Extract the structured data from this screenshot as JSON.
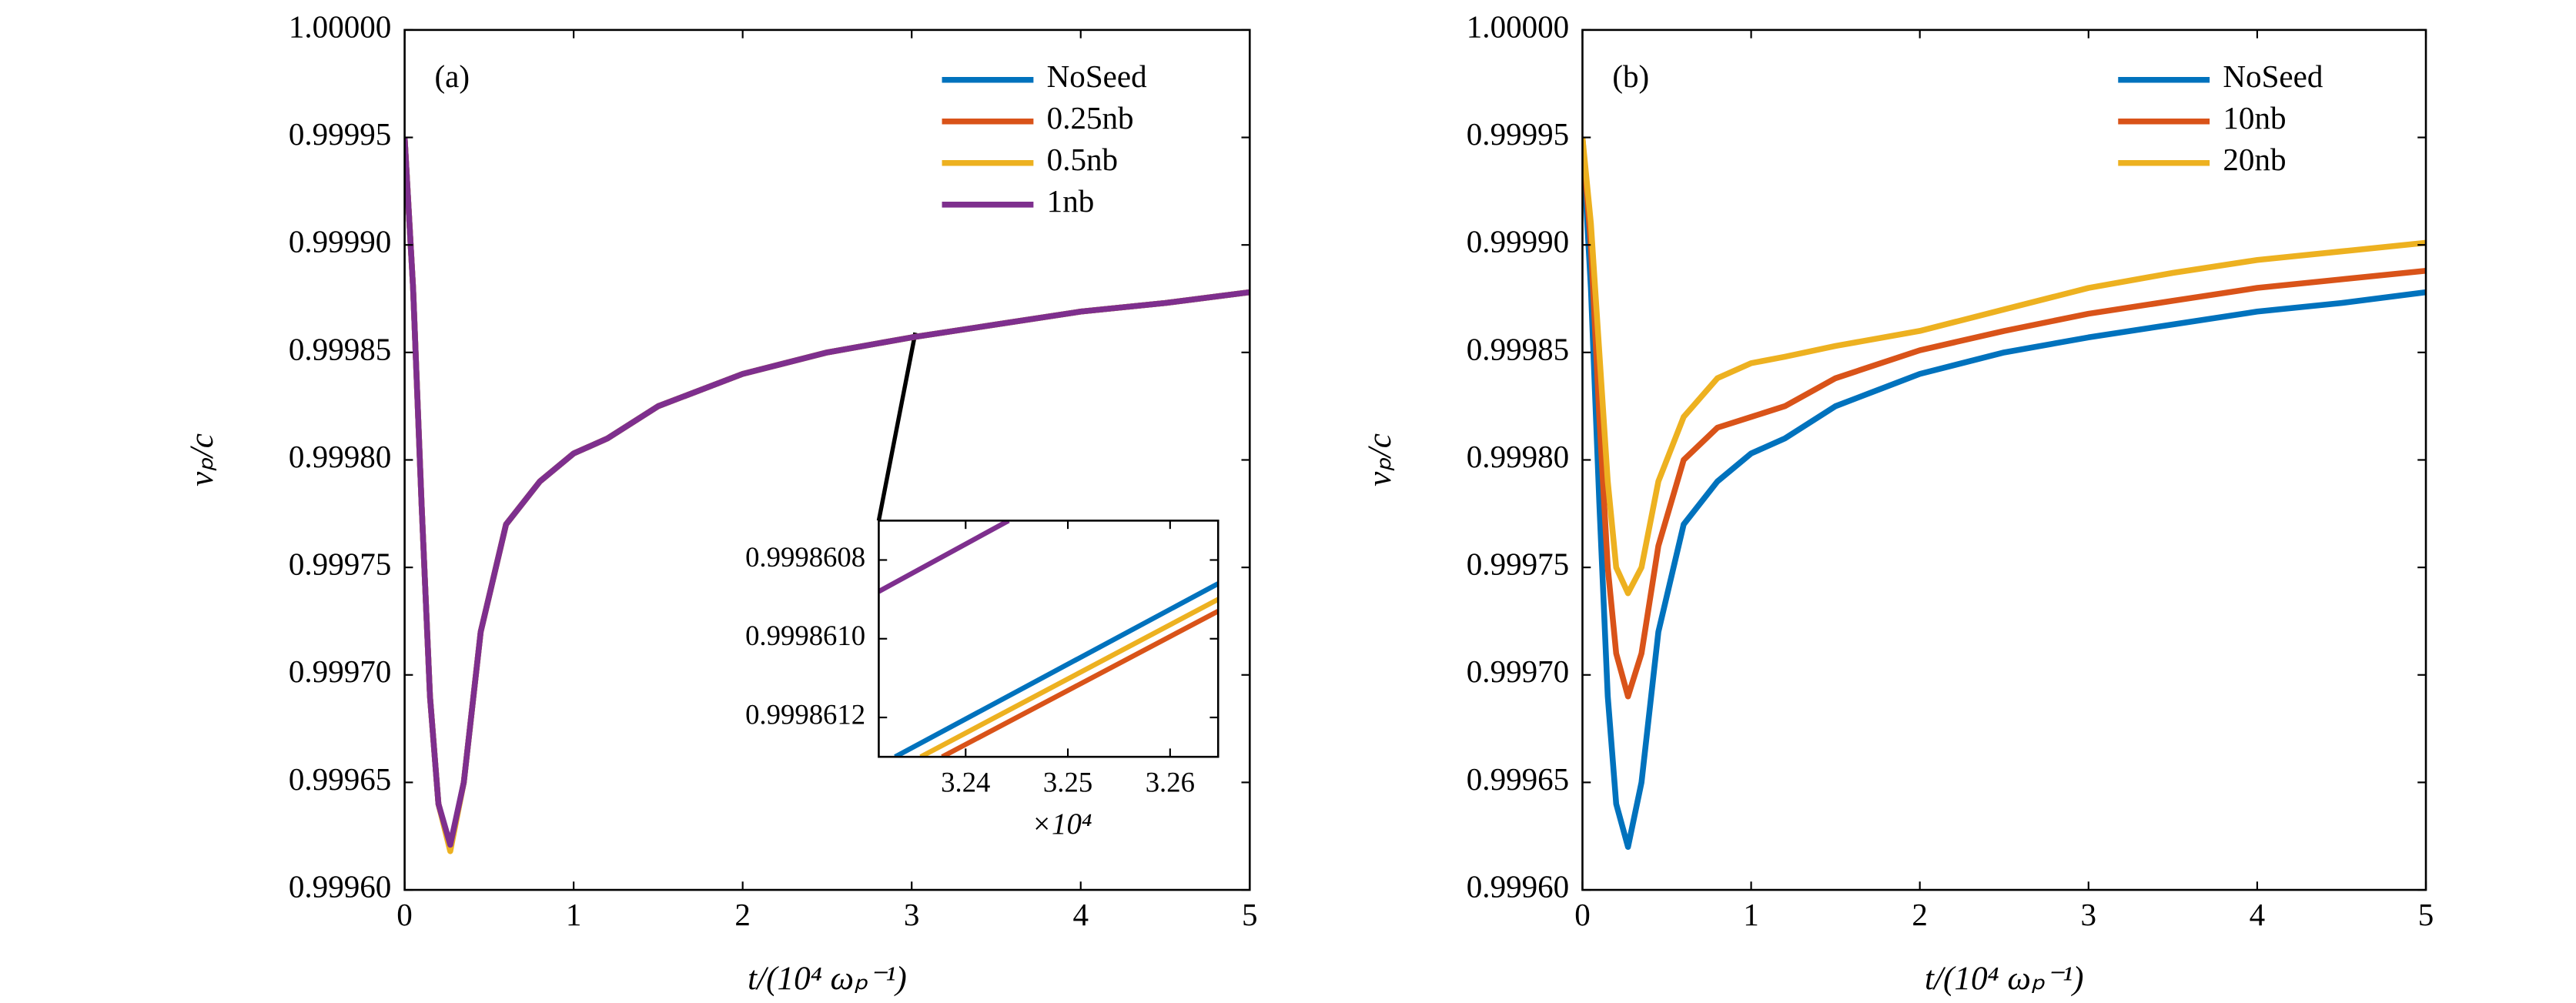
{
  "chart_data": [
    {
      "type": "line",
      "annotation": "(a)",
      "x_label": "t/(10⁴ ωₚ⁻¹)",
      "y_label": "vₚ/c",
      "x": [
        0,
        0.05,
        0.1,
        0.15,
        0.2,
        0.27,
        0.35,
        0.45,
        0.6,
        0.8,
        1.0,
        1.2,
        1.5,
        2,
        2.5,
        3,
        3.5,
        4,
        4.5,
        5
      ],
      "series": [
        {
          "name": "NoSeed",
          "color": "#0072bd",
          "values": [
            0.99995,
            0.99988,
            0.99978,
            0.99969,
            0.99964,
            0.99962,
            0.99965,
            0.99972,
            0.99977,
            0.99979,
            0.999803,
            0.99981,
            0.999825,
            0.99984,
            0.99985,
            0.999857,
            0.999863,
            0.999869,
            0.999873,
            0.999878
          ]
        },
        {
          "name": "0.25nb",
          "color": "#d95319",
          "values": [
            0.99995,
            0.99988,
            0.99978,
            0.99969,
            0.99964,
            0.999619,
            0.99965,
            0.99972,
            0.99977,
            0.99979,
            0.999803,
            0.99981,
            0.999825,
            0.99984,
            0.99985,
            0.999857,
            0.999863,
            0.999869,
            0.999873,
            0.999878
          ]
        },
        {
          "name": "0.5nb",
          "color": "#edb120",
          "values": [
            0.99995,
            0.99988,
            0.99978,
            0.99969,
            0.99964,
            0.999618,
            0.99965,
            0.99972,
            0.99977,
            0.99979,
            0.999803,
            0.99981,
            0.999825,
            0.99984,
            0.99985,
            0.999857,
            0.999863,
            0.999869,
            0.999873,
            0.999878
          ]
        },
        {
          "name": "1nb",
          "color": "#7e2f8e",
          "values": [
            0.99995,
            0.99988,
            0.99978,
            0.99969,
            0.99964,
            0.999621,
            0.99965,
            0.99972,
            0.99977,
            0.99979,
            0.999803,
            0.99981,
            0.999825,
            0.99984,
            0.99985,
            0.999857,
            0.999863,
            0.999869,
            0.999873,
            0.999878
          ]
        }
      ],
      "xlim": [
        0,
        5
      ],
      "xticks": [
        0,
        1,
        2,
        3,
        4,
        5
      ],
      "ylim": [
        0.9996,
        1
      ],
      "yticks": [
        {
          "value": 0.9996,
          "label": "0.99960"
        },
        0.99965,
        {
          "value": 0.9997,
          "label": "0.99970"
        },
        0.99975,
        {
          "value": 0.9998,
          "label": "0.99980"
        },
        0.99985,
        {
          "value": 0.9999,
          "label": "0.99990"
        },
        0.99995,
        {
          "value": 1,
          "label": "1.00000"
        }
      ],
      "legend": "upper right"
    },
    {
      "type": "line",
      "x_label": "×10⁴",
      "series": [
        {
          "name": "NoSeed",
          "color": "#0072bd",
          "x": [
            3.2331,
            3.2647
          ],
          "values": [
            0.9998613,
            0.99986086
          ]
        },
        {
          "name": "0.25nb",
          "color": "#d95319",
          "x": [
            3.2377,
            3.2647
          ],
          "values": [
            0.9998613,
            0.99986093
          ]
        },
        {
          "name": "0.5nb",
          "color": "#edb120",
          "x": [
            3.2356,
            3.2647
          ],
          "values": [
            0.9998613,
            0.9998609
          ]
        },
        {
          "name": "1nb",
          "color": "#7e2f8e",
          "x": [
            3.2315,
            3.2442
          ],
          "values": [
            0.99986088,
            0.9998607
          ]
        }
      ],
      "xlim": [
        3.2315,
        3.2647
      ],
      "xticks": [
        3.24,
        3.25,
        3.26
      ],
      "ylim": [
        0.9998613,
        0.9998607
      ],
      "yticks": [
        {
          "value": 0.9998608,
          "label": "0.9998608"
        },
        {
          "value": 0.999861,
          "label": "0.9998610"
        },
        {
          "value": 0.9998612,
          "label": "0.9998612"
        }
      ]
    },
    {
      "type": "line",
      "annotation": "(b)",
      "x_label": "t/(10⁴ ωₚ⁻¹)",
      "y_label": "vₚ/c",
      "x": [
        0,
        0.05,
        0.1,
        0.15,
        0.2,
        0.27,
        0.35,
        0.45,
        0.6,
        0.8,
        1.0,
        1.2,
        1.5,
        2,
        2.5,
        3,
        3.5,
        4,
        4.5,
        5
      ],
      "series": [
        {
          "name": "NoSeed",
          "color": "#0072bd",
          "values": [
            0.99995,
            0.99988,
            0.99978,
            0.99969,
            0.99964,
            0.99962,
            0.99965,
            0.99972,
            0.99977,
            0.99979,
            0.999803,
            0.99981,
            0.999825,
            0.99984,
            0.99985,
            0.999857,
            0.999863,
            0.999869,
            0.999873,
            0.999878
          ]
        },
        {
          "name": "10nb",
          "color": "#d95319",
          "values": [
            0.99995,
            0.9999,
            0.99982,
            0.99975,
            0.99971,
            0.99969,
            0.99971,
            0.99976,
            0.9998,
            0.999815,
            0.99982,
            0.999825,
            0.999838,
            0.999851,
            0.99986,
            0.999868,
            0.999874,
            0.99988,
            0.999884,
            0.999888
          ]
        },
        {
          "name": "20nb",
          "color": "#edb120",
          "values": [
            0.99995,
            0.99991,
            0.99985,
            0.99979,
            0.99975,
            0.999738,
            0.99975,
            0.99979,
            0.99982,
            0.999838,
            0.999845,
            0.999848,
            0.999853,
            0.99986,
            0.99987,
            0.99988,
            0.999887,
            0.999893,
            0.999897,
            0.999901
          ]
        }
      ],
      "xlim": [
        0,
        5
      ],
      "xticks": [
        0,
        1,
        2,
        3,
        4,
        5
      ],
      "ylim": [
        0.9996,
        1
      ],
      "yticks": [
        {
          "value": 0.9996,
          "label": "0.99960"
        },
        0.99965,
        {
          "value": 0.9997,
          "label": "0.99970"
        },
        0.99975,
        {
          "value": 0.9998,
          "label": "0.99980"
        },
        0.99985,
        {
          "value": 0.9999,
          "label": "0.99990"
        },
        0.99995,
        {
          "value": 1,
          "label": "1.00000"
        }
      ],
      "legend": "upper right"
    }
  ]
}
